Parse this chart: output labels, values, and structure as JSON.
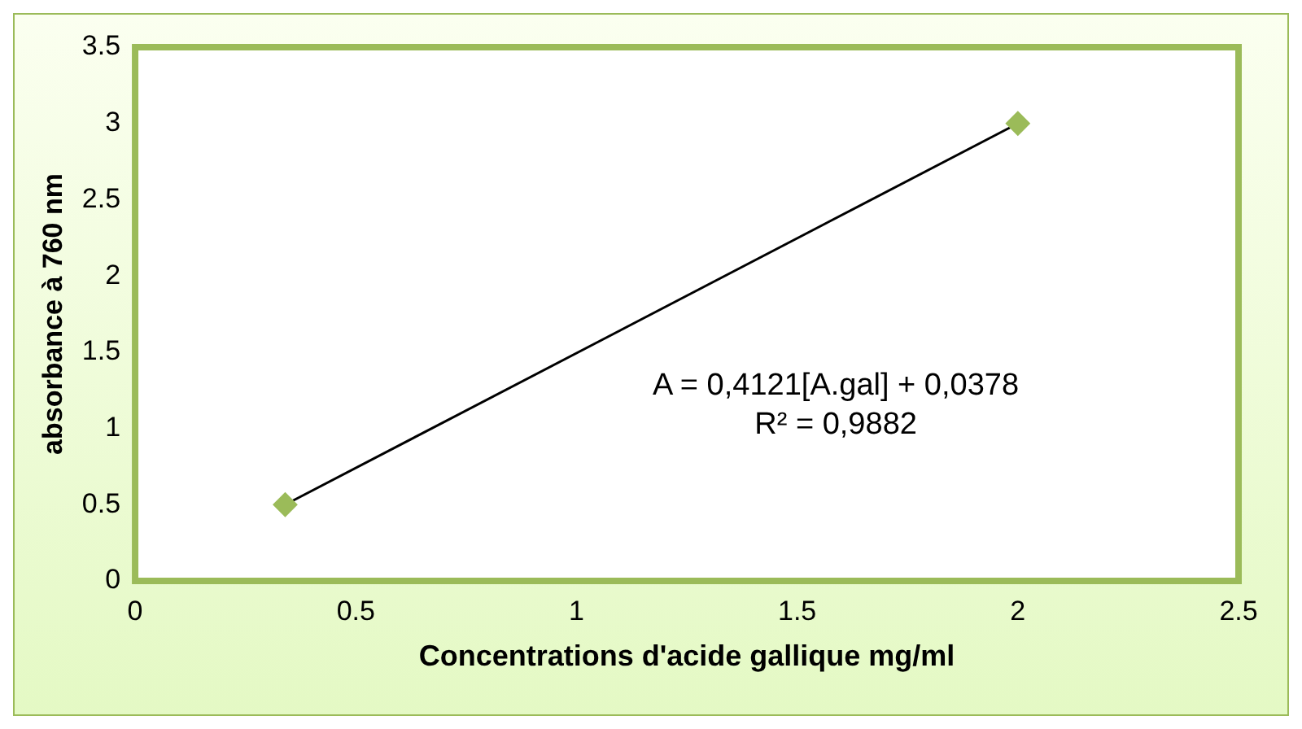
{
  "chart_data": {
    "type": "scatter",
    "xlabel": "Concentrations d'acide gallique mg/ml",
    "ylabel": "absorbance à 760 nm",
    "x": [
      0.34,
      2
    ],
    "series": [
      {
        "type": "scatter",
        "color": "#9bbb59",
        "marker": "diamond",
        "values": [
          0.5,
          3
        ]
      },
      {
        "type": "line",
        "color": "#000000",
        "marker": "none",
        "values": [
          0.5,
          3
        ]
      }
    ],
    "xlim": [
      0,
      2.5
    ],
    "xticks": [
      0,
      0.5,
      1,
      1.5,
      2,
      2.5
    ],
    "ylim": [
      0,
      3.5
    ],
    "yticks": [
      0,
      0.5,
      1,
      1.5,
      2,
      2.5,
      3,
      3.5
    ],
    "grid": false,
    "legend": false,
    "annotations": [
      "A = 0,4121[A.gal] + 0,0378\nR² = 0,9882"
    ]
  }
}
